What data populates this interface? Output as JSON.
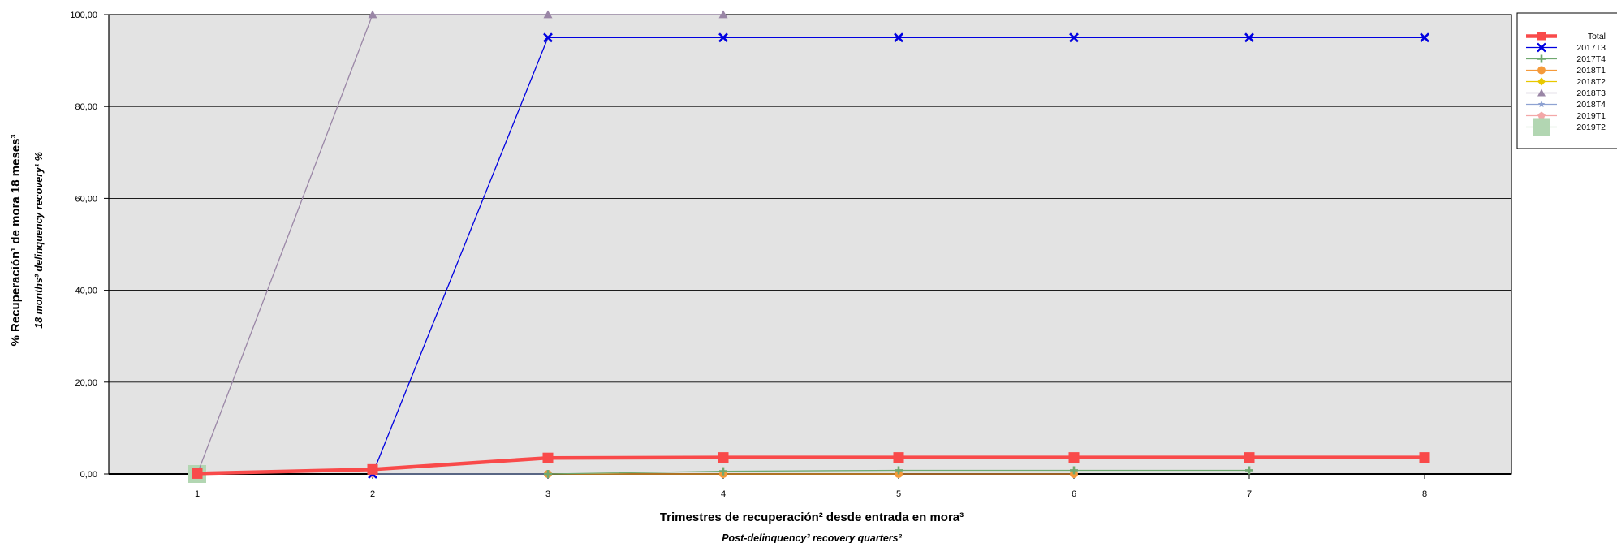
{
  "chart_data": {
    "type": "line",
    "title": "",
    "xlabel": "Trimestres de recuperación² desde entrada en mora³",
    "xlabel_sub": "Post-delinquency³ recovery quarters²",
    "ylabel": "% Recuperación¹ de mora 18 meses³",
    "ylabel_sub": "18 months³ delinquency recovery¹ %",
    "x": [
      1,
      2,
      3,
      4,
      5,
      6,
      7,
      8
    ],
    "x_tick_labels": [
      "1",
      "2",
      "3",
      "4",
      "5",
      "6",
      "7",
      "8"
    ],
    "ylim": [
      0,
      100
    ],
    "y_ticks": [
      0,
      20,
      40,
      60,
      80,
      100
    ],
    "y_tick_labels": [
      "0,00",
      "20,00",
      "40,00",
      "60,00",
      "80,00",
      "100,00"
    ],
    "grid": "horizontal",
    "plot_background": "#e3e3e3",
    "legend_position": "right",
    "series": [
      {
        "name": "Total",
        "color": "#f94a4a",
        "marker": "square",
        "width": 4.5,
        "size": 13,
        "values": [
          0.1,
          1.0,
          3.5,
          3.6,
          3.6,
          3.6,
          3.6,
          3.6
        ]
      },
      {
        "name": "2017T3",
        "color": "#0000e0",
        "marker": "x",
        "width": 1.3,
        "size": 10,
        "values": [
          null,
          0.0,
          95.0,
          95.0,
          95.0,
          95.0,
          95.0,
          95.0
        ]
      },
      {
        "name": "2017T4",
        "color": "#6fa86f",
        "marker": "plus",
        "width": 1.3,
        "size": 10,
        "values": [
          null,
          null,
          0.0,
          0.6,
          0.8,
          0.8,
          0.8,
          null
        ]
      },
      {
        "name": "2018T1",
        "color": "#f59a3a",
        "marker": "circle",
        "width": 1.3,
        "size": 10,
        "values": [
          null,
          null,
          0.0,
          0.0,
          0.0,
          0.0,
          null,
          null
        ]
      },
      {
        "name": "2018T2",
        "color": "#e8c800",
        "marker": "diamond",
        "width": 1.3,
        "size": 10,
        "values": [
          null,
          null,
          0.0,
          0.0,
          0.0,
          null,
          null,
          null
        ]
      },
      {
        "name": "2018T3",
        "color": "#9a86a6",
        "marker": "triangle",
        "width": 1.3,
        "size": 11,
        "values": [
          0.0,
          100.0,
          100.0,
          100.0,
          null,
          null,
          null,
          null
        ]
      },
      {
        "name": "2018T4",
        "color": "#8ea2d2",
        "marker": "star",
        "width": 1.3,
        "size": 9,
        "values": [
          null,
          0.0,
          0.0,
          null,
          null,
          null,
          null,
          null
        ]
      },
      {
        "name": "2019T1",
        "color": "#f3a7a7",
        "marker": "pentagon",
        "width": 1.3,
        "size": 11,
        "values": [
          null,
          0.0,
          null,
          null,
          null,
          null,
          null,
          null
        ]
      },
      {
        "name": "2019T2",
        "color": "#b2d6b2",
        "marker": "square",
        "width": 1.3,
        "size": 22,
        "values": [
          0.0,
          null,
          null,
          null,
          null,
          null,
          null,
          null
        ]
      }
    ]
  }
}
